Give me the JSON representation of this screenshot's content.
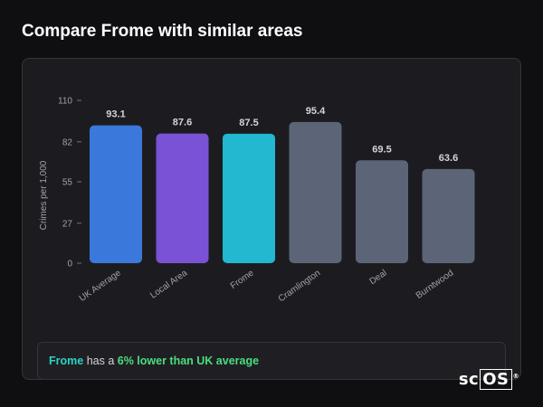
{
  "page": {
    "title": "Compare Frome with similar areas"
  },
  "summary": {
    "area": "Frome",
    "has_a": "has a",
    "difference": "6% lower than UK average"
  },
  "brand": {
    "prefix": "sc",
    "boxed": "OS",
    "reg": "®"
  },
  "chart_data": {
    "type": "bar",
    "title": "",
    "xlabel": "",
    "ylabel": "Crimes per 1,000",
    "ylim": [
      0,
      110
    ],
    "yticks": [
      0,
      27,
      55,
      82,
      110
    ],
    "categories": [
      "UK Average",
      "Local Area",
      "Frome",
      "Cramlington",
      "Deal",
      "Burntwood"
    ],
    "values": [
      93.1,
      87.6,
      87.5,
      95.4,
      69.5,
      63.6
    ],
    "value_labels": [
      "93.1",
      "87.6",
      "87.5",
      "95.4",
      "69.5",
      "63.6"
    ],
    "colors": [
      "#3b78db",
      "#7a52d6",
      "#22b8cf",
      "#5b6577",
      "#5b6577",
      "#5b6577"
    ],
    "grid": false,
    "legend": "none"
  }
}
